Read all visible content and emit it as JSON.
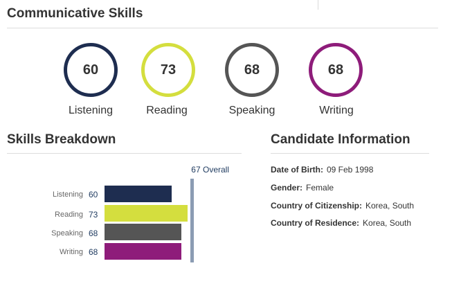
{
  "communicative": {
    "title": "Communicative Skills",
    "skills": [
      {
        "label": "Listening",
        "score": "60",
        "color": "#1e2d50"
      },
      {
        "label": "Reading",
        "score": "73",
        "color": "#d4de3e"
      },
      {
        "label": "Speaking",
        "score": "68",
        "color": "#555555"
      },
      {
        "label": "Writing",
        "score": "68",
        "color": "#8e1c7a"
      }
    ]
  },
  "breakdown": {
    "title": "Skills Breakdown",
    "overall_label": "67 Overall",
    "overall": 67,
    "rows": [
      {
        "label": "Listening",
        "value": "60",
        "color": "#1e2d50"
      },
      {
        "label": "Reading",
        "value": "73",
        "color": "#d4de3e"
      },
      {
        "label": "Speaking",
        "value": "68",
        "color": "#555555"
      },
      {
        "label": "Writing",
        "value": "68",
        "color": "#8e1c7a"
      }
    ]
  },
  "candidate": {
    "title": "Candidate Information",
    "fields": [
      {
        "label": "Date of Birth:",
        "value": "09 Feb 1998"
      },
      {
        "label": "Gender:",
        "value": "Female"
      },
      {
        "label": "Country of Citizenship:",
        "value": "Korea, South"
      },
      {
        "label": "Country of Residence:",
        "value": "Korea, South"
      }
    ]
  }
}
